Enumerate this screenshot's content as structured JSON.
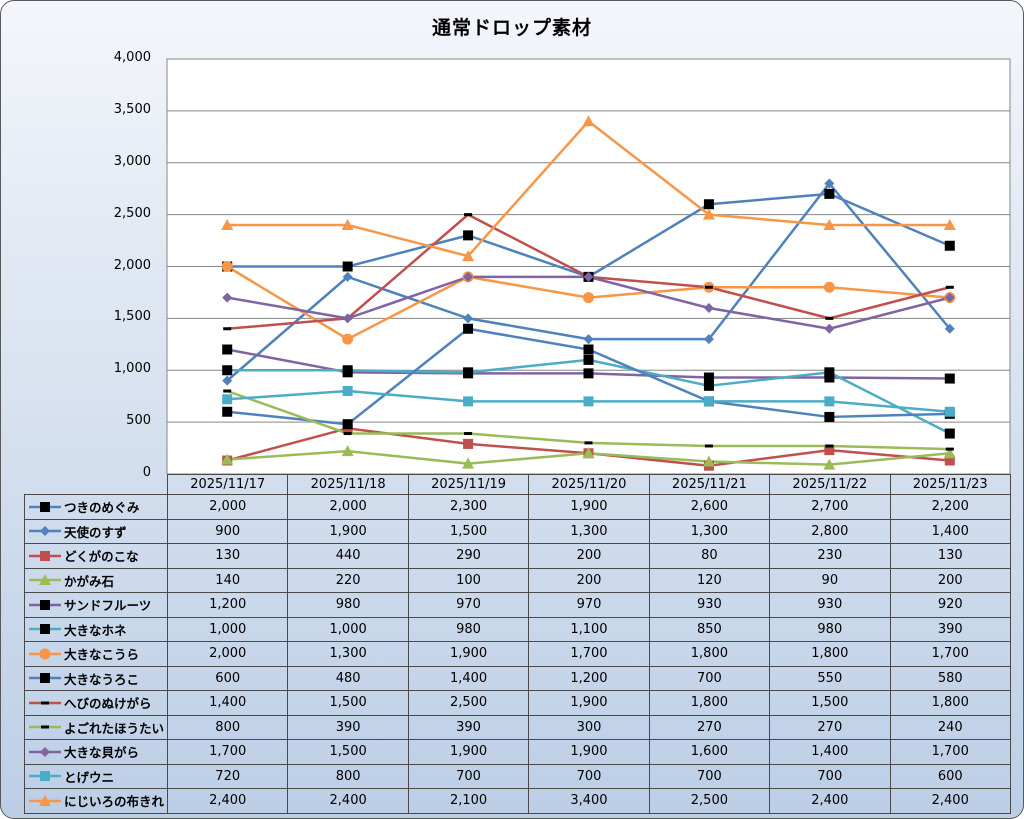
{
  "chart_data": {
    "type": "line",
    "title": "通常ドロップ素材",
    "xlabel": "",
    "ylabel": "",
    "ylim": [
      0,
      4000
    ],
    "y_ticks": [
      "0",
      "500",
      "1,000",
      "1,500",
      "2,000",
      "2,500",
      "3,000",
      "3,500",
      "4,000"
    ],
    "y_tick_values": [
      0,
      500,
      1000,
      1500,
      2000,
      2500,
      3000,
      3500,
      4000
    ],
    "grid": true,
    "legend": "data-table-left",
    "categories": [
      "2025/11/17",
      "2025/11/18",
      "2025/11/19",
      "2025/11/20",
      "2025/11/21",
      "2025/11/22",
      "2025/11/23"
    ],
    "series": [
      {
        "name": "つきのめぐみ",
        "color": "#4F81BD",
        "marker": "square-black",
        "values": [
          2000,
          2000,
          2300,
          1900,
          2600,
          2700,
          2200
        ],
        "labels": [
          "2,000",
          "2,000",
          "2,300",
          "1,900",
          "2,600",
          "2,700",
          "2,200"
        ]
      },
      {
        "name": "天使のすず",
        "color": "#4F81BD",
        "marker": "diamond",
        "values": [
          900,
          1900,
          1500,
          1300,
          1300,
          2800,
          1400
        ],
        "labels": [
          "900",
          "1,900",
          "1,500",
          "1,300",
          "1,300",
          "2,800",
          "1,400"
        ]
      },
      {
        "name": "どくがのこな",
        "color": "#C0504D",
        "marker": "square",
        "values": [
          130,
          440,
          290,
          200,
          80,
          230,
          130
        ],
        "labels": [
          "130",
          "440",
          "290",
          "200",
          "80",
          "230",
          "130"
        ]
      },
      {
        "name": "かがみ石",
        "color": "#9BBB59",
        "marker": "triangle",
        "values": [
          140,
          220,
          100,
          200,
          120,
          90,
          200
        ],
        "labels": [
          "140",
          "220",
          "100",
          "200",
          "120",
          "90",
          "200"
        ]
      },
      {
        "name": "サンドフルーツ",
        "color": "#8064A2",
        "marker": "square-black",
        "values": [
          1200,
          980,
          970,
          970,
          930,
          930,
          920
        ],
        "labels": [
          "1,200",
          "980",
          "970",
          "970",
          "930",
          "930",
          "920"
        ]
      },
      {
        "name": "大きなホネ",
        "color": "#4BACC6",
        "marker": "square-black",
        "values": [
          1000,
          1000,
          980,
          1100,
          850,
          980,
          390
        ],
        "labels": [
          "1,000",
          "1,000",
          "980",
          "1,100",
          "850",
          "980",
          "390"
        ]
      },
      {
        "name": "大きなこうら",
        "color": "#F79646",
        "marker": "circle",
        "values": [
          2000,
          1300,
          1900,
          1700,
          1800,
          1800,
          1700
        ],
        "labels": [
          "2,000",
          "1,300",
          "1,900",
          "1,700",
          "1,800",
          "1,800",
          "1,700"
        ]
      },
      {
        "name": "大きなうろこ",
        "color": "#4F81BD",
        "marker": "square-black",
        "values": [
          600,
          480,
          1400,
          1200,
          700,
          550,
          580
        ],
        "labels": [
          "600",
          "480",
          "1,400",
          "1,200",
          "700",
          "550",
          "580"
        ]
      },
      {
        "name": "へびのぬけがら",
        "color": "#C0504D",
        "marker": "dash-black",
        "values": [
          1400,
          1500,
          2500,
          1900,
          1800,
          1500,
          1800
        ],
        "labels": [
          "1,400",
          "1,500",
          "2,500",
          "1,900",
          "1,800",
          "1,500",
          "1,800"
        ]
      },
      {
        "name": "よごれたほうたい",
        "color": "#9BBB59",
        "marker": "dash-black",
        "values": [
          800,
          390,
          390,
          300,
          270,
          270,
          240
        ],
        "labels": [
          "800",
          "390",
          "390",
          "300",
          "270",
          "270",
          "240"
        ]
      },
      {
        "name": "大きな貝がら",
        "color": "#8064A2",
        "marker": "diamond",
        "values": [
          1700,
          1500,
          1900,
          1900,
          1600,
          1400,
          1700
        ],
        "labels": [
          "1,700",
          "1,500",
          "1,900",
          "1,900",
          "1,600",
          "1,400",
          "1,700"
        ]
      },
      {
        "name": "とげウニ",
        "color": "#4BACC6",
        "marker": "square",
        "values": [
          720,
          800,
          700,
          700,
          700,
          700,
          600
        ],
        "labels": [
          "720",
          "800",
          "700",
          "700",
          "700",
          "700",
          "600"
        ]
      },
      {
        "name": "にじいろの布きれ",
        "color": "#F79646",
        "marker": "triangle",
        "values": [
          2400,
          2400,
          2100,
          3400,
          2500,
          2400,
          2400
        ],
        "labels": [
          "2,400",
          "2,400",
          "2,100",
          "3,400",
          "2,500",
          "2,400",
          "2,400"
        ]
      }
    ]
  }
}
